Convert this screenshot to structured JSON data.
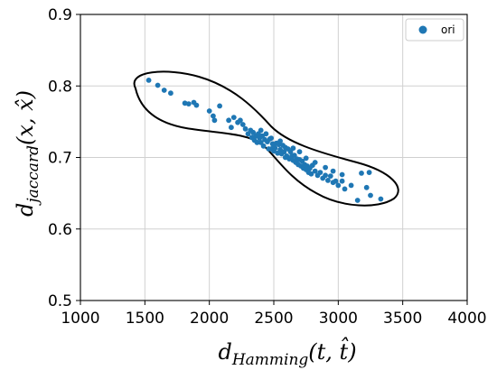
{
  "chart_data": {
    "type": "scatter",
    "xlabel": {
      "base": "d",
      "sub": "Hamming",
      "args": "(t, t̂)"
    },
    "ylabel": {
      "base": "d",
      "sub": "jaccard",
      "args": "(x, x̂)"
    },
    "xlim": [
      1000,
      4000
    ],
    "ylim": [
      0.5,
      0.9
    ],
    "xticks": [
      "1000",
      "1500",
      "2000",
      "2500",
      "3000",
      "3500",
      "4000"
    ],
    "yticks": [
      "0.5",
      "0.6",
      "0.7",
      "0.8",
      "0.9"
    ],
    "grid": true,
    "legend": {
      "position": "top-right"
    },
    "series": [
      {
        "name": "ori",
        "color": "#1f77b4",
        "points": [
          [
            1530,
            0.808
          ],
          [
            1600,
            0.801
          ],
          [
            1650,
            0.794
          ],
          [
            1700,
            0.79
          ],
          [
            1810,
            0.776
          ],
          [
            1840,
            0.775
          ],
          [
            1880,
            0.777
          ],
          [
            1900,
            0.773
          ],
          [
            2000,
            0.765
          ],
          [
            2030,
            0.758
          ],
          [
            2040,
            0.752
          ],
          [
            2080,
            0.772
          ],
          [
            2150,
            0.752
          ],
          [
            2170,
            0.742
          ],
          [
            2190,
            0.756
          ],
          [
            2220,
            0.749
          ],
          [
            2240,
            0.752
          ],
          [
            2260,
            0.746
          ],
          [
            2280,
            0.74
          ],
          [
            2300,
            0.733
          ],
          [
            2320,
            0.738
          ],
          [
            2330,
            0.728
          ],
          [
            2340,
            0.735
          ],
          [
            2350,
            0.724
          ],
          [
            2360,
            0.73
          ],
          [
            2370,
            0.721
          ],
          [
            2380,
            0.733
          ],
          [
            2390,
            0.727
          ],
          [
            2400,
            0.721
          ],
          [
            2410,
            0.73
          ],
          [
            2420,
            0.716
          ],
          [
            2430,
            0.725
          ],
          [
            2440,
            0.733
          ],
          [
            2450,
            0.722
          ],
          [
            2460,
            0.712
          ],
          [
            2470,
            0.726
          ],
          [
            2480,
            0.712
          ],
          [
            2490,
            0.719
          ],
          [
            2500,
            0.709
          ],
          [
            2510,
            0.713
          ],
          [
            2520,
            0.72
          ],
          [
            2530,
            0.706
          ],
          [
            2540,
            0.718
          ],
          [
            2550,
            0.711
          ],
          [
            2560,
            0.705
          ],
          [
            2570,
            0.717
          ],
          [
            2580,
            0.708
          ],
          [
            2590,
            0.714
          ],
          [
            2600,
            0.702
          ],
          [
            2610,
            0.712
          ],
          [
            2620,
            0.698
          ],
          [
            2630,
            0.708
          ],
          [
            2640,
            0.702
          ],
          [
            2650,
            0.696
          ],
          [
            2660,
            0.703
          ],
          [
            2670,
            0.693
          ],
          [
            2680,
            0.698
          ],
          [
            2690,
            0.69
          ],
          [
            2700,
            0.697
          ],
          [
            2710,
            0.688
          ],
          [
            2720,
            0.695
          ],
          [
            2730,
            0.685
          ],
          [
            2740,
            0.69
          ],
          [
            2750,
            0.683
          ],
          [
            2760,
            0.688
          ],
          [
            2770,
            0.679
          ],
          [
            2780,
            0.685
          ],
          [
            2790,
            0.677
          ],
          [
            2800,
            0.689
          ],
          [
            2820,
            0.681
          ],
          [
            2840,
            0.675
          ],
          [
            2860,
            0.679
          ],
          [
            2880,
            0.671
          ],
          [
            2900,
            0.675
          ],
          [
            2920,
            0.668
          ],
          [
            2940,
            0.674
          ],
          [
            2960,
            0.665
          ],
          [
            2980,
            0.667
          ],
          [
            3000,
            0.661
          ],
          [
            3030,
            0.667
          ],
          [
            3050,
            0.656
          ],
          [
            3100,
            0.661
          ],
          [
            3150,
            0.64
          ],
          [
            3180,
            0.678
          ],
          [
            3220,
            0.658
          ],
          [
            3240,
            0.679
          ],
          [
            3250,
            0.647
          ],
          [
            3330,
            0.642
          ],
          [
            2480,
            0.727
          ],
          [
            2550,
            0.723
          ],
          [
            2590,
            0.7
          ],
          [
            2700,
            0.708
          ],
          [
            2750,
            0.699
          ],
          [
            2820,
            0.693
          ],
          [
            2900,
            0.686
          ],
          [
            2960,
            0.681
          ],
          [
            3030,
            0.676
          ],
          [
            2650,
            0.713
          ],
          [
            2400,
            0.738
          ],
          [
            2500,
            0.716
          ]
        ]
      }
    ],
    "annotations": [
      {
        "type": "ellipse-outline",
        "color": "#000000"
      }
    ]
  }
}
